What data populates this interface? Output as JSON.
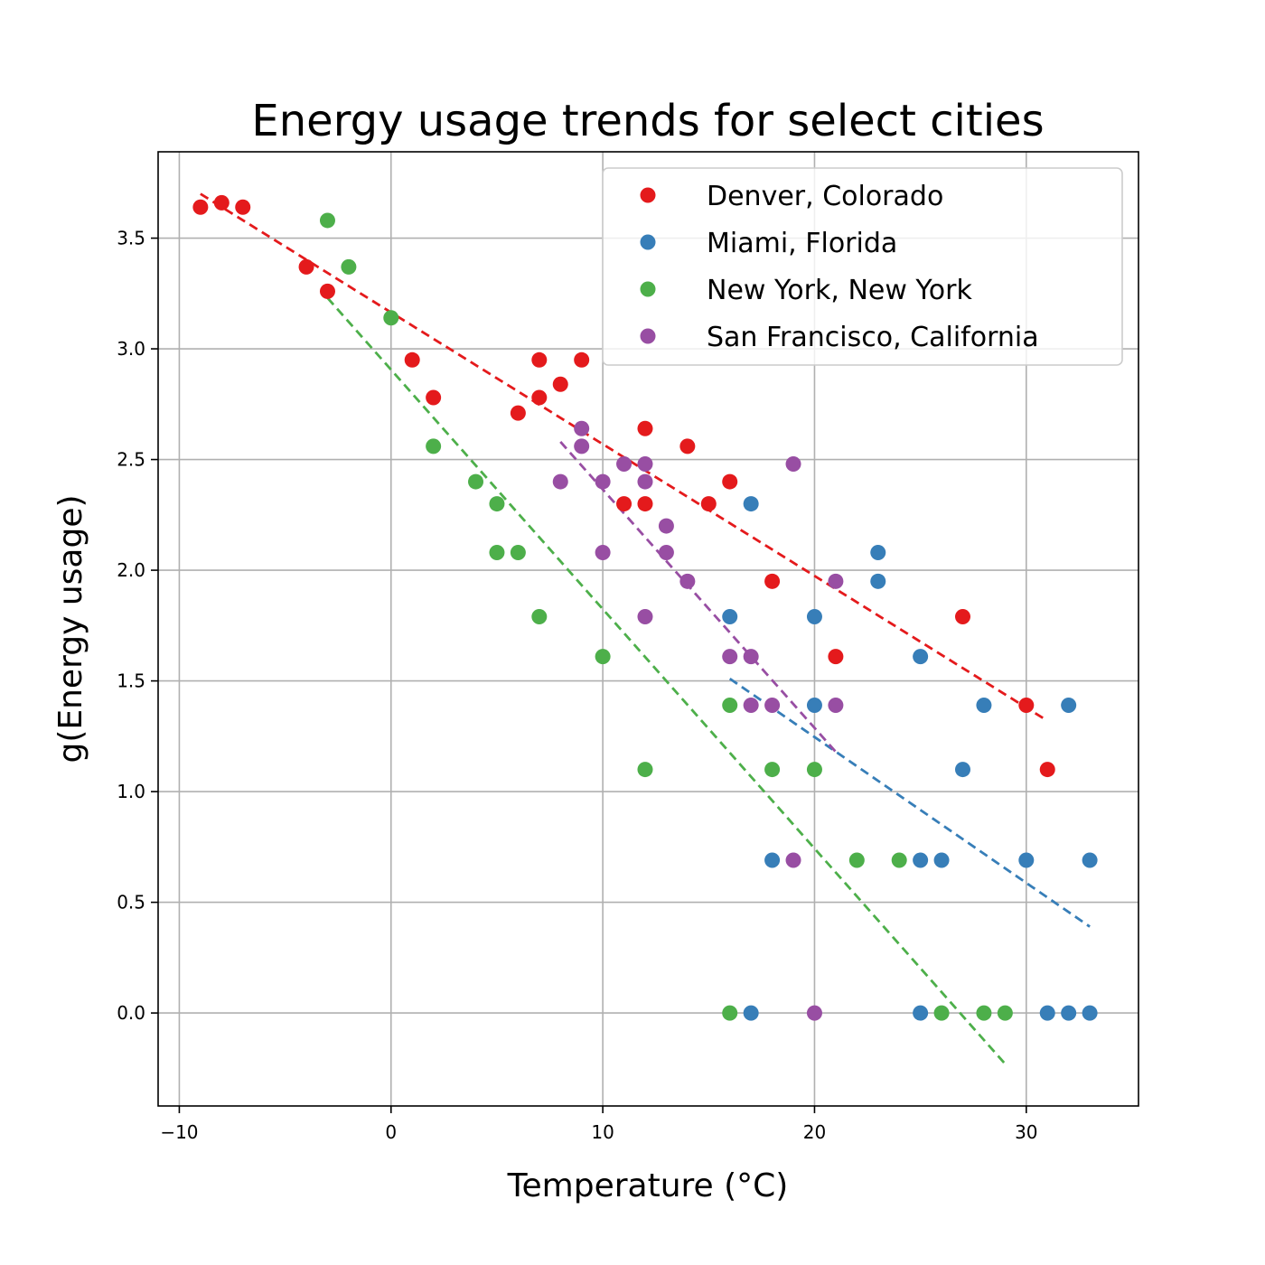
{
  "chart_data": {
    "type": "scatter",
    "title": "Energy usage trends for select cities",
    "xlabel": "Temperature (°C)",
    "ylabel": "g(Energy usage)",
    "xlim": [
      -11,
      35.3
    ],
    "ylim": [
      -0.42,
      3.89
    ],
    "x_ticks": [
      -10,
      0,
      10,
      20,
      30
    ],
    "x_tick_labels": [
      "−10",
      "0",
      "10",
      "20",
      "30"
    ],
    "y_ticks": [
      0.0,
      0.5,
      1.0,
      1.5,
      2.0,
      2.5,
      3.0,
      3.5
    ],
    "y_tick_labels": [
      "0.0",
      "0.5",
      "1.0",
      "1.5",
      "2.0",
      "2.5",
      "3.0",
      "3.5"
    ],
    "grid": true,
    "legend_position": "top-right",
    "series": [
      {
        "name": "Denver, Colorado",
        "color": "#e41a1c",
        "points": [
          [
            -9,
            3.64
          ],
          [
            -8,
            3.66
          ],
          [
            -7,
            3.64
          ],
          [
            -4,
            3.37
          ],
          [
            -3,
            3.26
          ],
          [
            1,
            2.95
          ],
          [
            2,
            2.78
          ],
          [
            6,
            2.71
          ],
          [
            7,
            2.78
          ],
          [
            7,
            2.95
          ],
          [
            8,
            2.84
          ],
          [
            9,
            2.95
          ],
          [
            11,
            2.3
          ],
          [
            12,
            2.64
          ],
          [
            12,
            2.3
          ],
          [
            14,
            2.56
          ],
          [
            15,
            2.3
          ],
          [
            16,
            2.4
          ],
          [
            18,
            1.95
          ],
          [
            21,
            1.61
          ],
          [
            27,
            1.79
          ],
          [
            30,
            1.39
          ],
          [
            31,
            1.1
          ]
        ],
        "trend": {
          "x": [
            -9,
            31
          ],
          "y": [
            3.7,
            1.32
          ]
        }
      },
      {
        "name": "Miami, Florida",
        "color": "#377eb8",
        "points": [
          [
            16,
            1.79
          ],
          [
            17,
            2.3
          ],
          [
            17,
            0.0
          ],
          [
            18,
            0.69
          ],
          [
            20,
            1.79
          ],
          [
            20,
            1.39
          ],
          [
            23,
            2.08
          ],
          [
            23,
            1.95
          ],
          [
            25,
            1.61
          ],
          [
            25,
            0.69
          ],
          [
            25,
            0.0
          ],
          [
            26,
            0.69
          ],
          [
            27,
            1.1
          ],
          [
            28,
            1.39
          ],
          [
            30,
            0.69
          ],
          [
            31,
            0.0
          ],
          [
            32,
            1.39
          ],
          [
            32,
            0.0
          ],
          [
            33,
            0.69
          ],
          [
            33,
            0.0
          ]
        ],
        "trend": {
          "x": [
            16,
            33
          ],
          "y": [
            1.51,
            0.39
          ]
        }
      },
      {
        "name": "New York, New York",
        "color": "#4daf4a",
        "points": [
          [
            -3,
            3.58
          ],
          [
            -2,
            3.37
          ],
          [
            0,
            3.14
          ],
          [
            2,
            2.56
          ],
          [
            4,
            2.4
          ],
          [
            5,
            2.3
          ],
          [
            5,
            2.08
          ],
          [
            6,
            2.08
          ],
          [
            7,
            1.79
          ],
          [
            10,
            1.61
          ],
          [
            12,
            1.1
          ],
          [
            16,
            1.39
          ],
          [
            16,
            0.0
          ],
          [
            18,
            1.1
          ],
          [
            20,
            1.1
          ],
          [
            22,
            0.69
          ],
          [
            24,
            0.69
          ],
          [
            26,
            0.0
          ],
          [
            28,
            0.0
          ],
          [
            29,
            0.0
          ]
        ],
        "trend": {
          "x": [
            -3,
            29
          ],
          "y": [
            3.23,
            -0.23
          ]
        }
      },
      {
        "name": "San Francisco, California",
        "color": "#984ea3",
        "points": [
          [
            8,
            2.4
          ],
          [
            9,
            2.64
          ],
          [
            9,
            2.56
          ],
          [
            10,
            2.4
          ],
          [
            10,
            2.08
          ],
          [
            11,
            2.48
          ],
          [
            12,
            2.48
          ],
          [
            12,
            2.4
          ],
          [
            12,
            1.79
          ],
          [
            13,
            2.2
          ],
          [
            13,
            2.08
          ],
          [
            14,
            1.95
          ],
          [
            16,
            1.61
          ],
          [
            17,
            1.61
          ],
          [
            17,
            1.39
          ],
          [
            18,
            1.39
          ],
          [
            19,
            2.48
          ],
          [
            19,
            0.69
          ],
          [
            20,
            0.0
          ],
          [
            21,
            1.95
          ],
          [
            21,
            1.39
          ]
        ],
        "trend": {
          "x": [
            8,
            21
          ],
          "y": [
            2.58,
            1.18
          ]
        }
      }
    ]
  }
}
